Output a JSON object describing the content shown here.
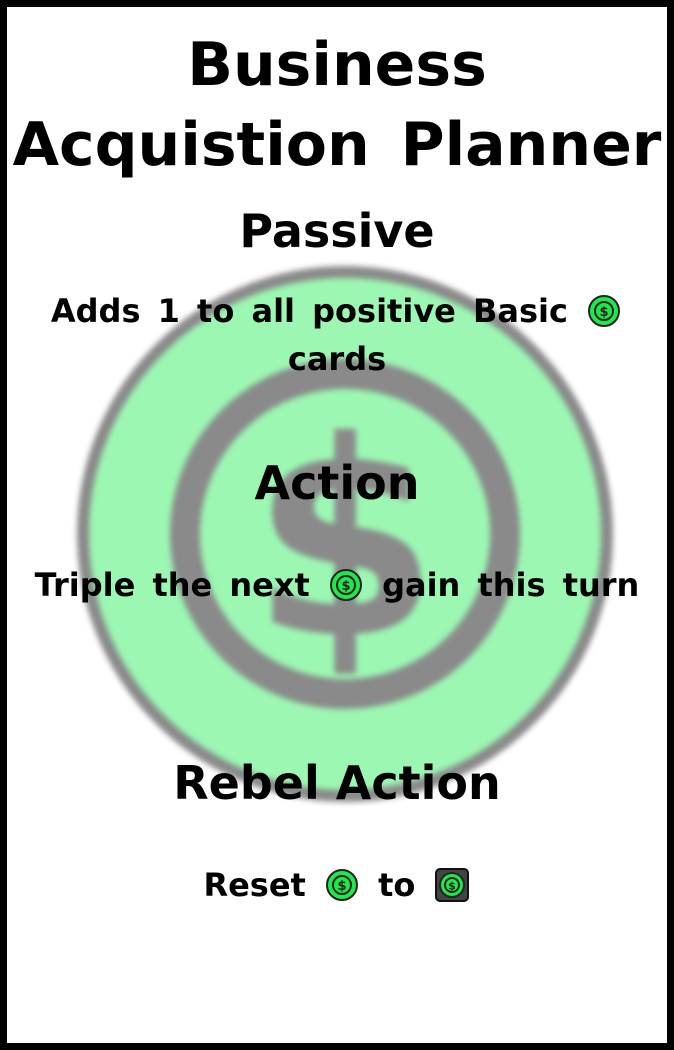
{
  "card": {
    "title_line1": "Business",
    "title_line2": "Acquistion Planner",
    "sections": {
      "passive": {
        "heading": "Passive",
        "text_before_icon": "Adds 1 to all positive Basic",
        "text_after_icon": "cards"
      },
      "action": {
        "heading": "Action",
        "text_before_icon": "Triple the next",
        "text_after_icon": "gain this turn"
      },
      "rebel_action": {
        "heading": "Rebel Action",
        "text_before_icon": "Reset",
        "text_middle": "to"
      }
    }
  },
  "icons": {
    "money": "money-coin-icon",
    "money_dark": "money-token-dark-icon",
    "background": "money-coin-background-icon"
  },
  "colors": {
    "coin_green": "#1ee84a",
    "coin_bg_green": "#9cf7b3",
    "coin_bg_ring": "#8a8a8a",
    "dark_token": "#444444",
    "border": "#000000"
  }
}
